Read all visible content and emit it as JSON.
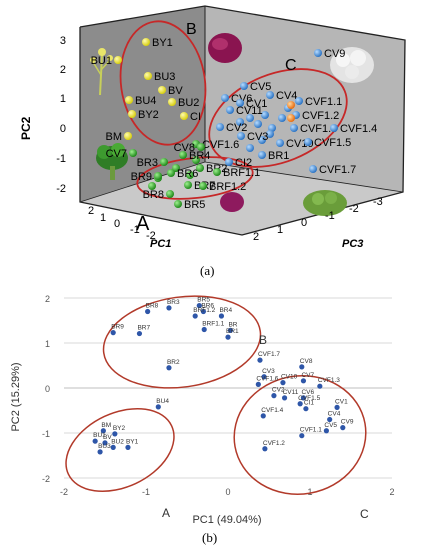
{
  "figure": {
    "label_a": "(a)",
    "label_b": "(b)"
  },
  "panel_a": {
    "axis_labels": {
      "pc1": "PC1",
      "pc2": "PC2",
      "pc3": "PC3"
    },
    "group_labels": {
      "A": "A",
      "B": "B",
      "C": "C"
    },
    "pc2_ticks": [
      "3",
      "2",
      "1",
      "0",
      "-1",
      "-2"
    ],
    "pc1_ticks": [
      "2",
      "1",
      "0",
      "-1",
      "-2"
    ],
    "pc3_ticks": [
      "2",
      "1",
      "0",
      "-1",
      "-2",
      "-3"
    ],
    "colors": {
      "A": "#f2ee2a",
      "B": "#2fa829",
      "C": "#3f8fd8",
      "misc": "#ff8a1c",
      "ellipse": "#c62828",
      "wall_left": "#8c8c8c",
      "wall_back": "#b6b6b6",
      "floor": "#c8c8c8"
    },
    "points_A": [
      "BY1",
      "BU1",
      "BU3",
      "BV",
      "BU4",
      "BU2",
      "BY2",
      "CI",
      "BM"
    ],
    "points_B": [
      "CV7",
      "BR4",
      "BR3",
      "BR9",
      "BR7",
      "BR6",
      "BR8",
      "BR5",
      "BR2",
      "BRF1.1",
      "BRF1.2",
      "CVF1.6",
      "CV8"
    ],
    "points_C": [
      "CV5",
      "CV6",
      "CV1",
      "CV4",
      "CV11",
      "CV2",
      "CV3",
      "CV10",
      "CVF1.1",
      "CVF1.2",
      "CVF1.3",
      "CVF1.4",
      "CVF1.5",
      "BR1",
      "CI2",
      "CV9",
      "CVF1.7"
    ]
  },
  "chart_data": {
    "type": "scatter",
    "title": "",
    "xlabel": "PC1 (49.04%)",
    "ylabel": "PC2 (15.29%)",
    "xlim": [
      -2,
      2
    ],
    "ylim": [
      -2,
      2
    ],
    "xticks": [
      -2,
      -1,
      0,
      1,
      2
    ],
    "yticks": [
      -2,
      -1,
      0,
      1,
      2
    ],
    "grid": "horizontal",
    "point_color": "#2e56a8",
    "ellipse_color": "#b23a2a",
    "groups": [
      {
        "label": "A",
        "points": [
          {
            "name": "BU4",
            "x": -0.85,
            "y": -0.42
          },
          {
            "name": "BM",
            "x": -1.52,
            "y": -0.95
          },
          {
            "name": "BY2",
            "x": -1.38,
            "y": -1.02
          },
          {
            "name": "BU1",
            "x": -1.62,
            "y": -1.18
          },
          {
            "name": "BV",
            "x": -1.5,
            "y": -1.22
          },
          {
            "name": "BU2",
            "x": -1.4,
            "y": -1.32
          },
          {
            "name": "BY1",
            "x": -1.22,
            "y": -1.32
          },
          {
            "name": "BU3",
            "x": -1.56,
            "y": -1.42
          }
        ]
      },
      {
        "label": "B",
        "points": [
          {
            "name": "BR5",
            "x": -0.35,
            "y": 1.83
          },
          {
            "name": "BR3",
            "x": -0.72,
            "y": 1.78
          },
          {
            "name": "BR8",
            "x": -0.98,
            "y": 1.7
          },
          {
            "name": "BR6",
            "x": -0.3,
            "y": 1.7
          },
          {
            "name": "BRF1.2",
            "x": -0.4,
            "y": 1.6
          },
          {
            "name": "BR4",
            "x": -0.08,
            "y": 1.6
          },
          {
            "name": "BRF1.1",
            "x": -0.29,
            "y": 1.3
          },
          {
            "name": "BR",
            "x": 0.03,
            "y": 1.28
          },
          {
            "name": "BR7",
            "x": -1.08,
            "y": 1.21
          },
          {
            "name": "BR9",
            "x": -1.4,
            "y": 1.23
          },
          {
            "name": "BR1",
            "x": 0.0,
            "y": 1.13
          },
          {
            "name": "BR2",
            "x": -0.72,
            "y": 0.45
          }
        ]
      },
      {
        "label": "C",
        "points": [
          {
            "name": "CVF1.7",
            "x": 0.39,
            "y": 0.62
          },
          {
            "name": "CV8",
            "x": 0.9,
            "y": 0.47
          },
          {
            "name": "CV3",
            "x": 0.44,
            "y": 0.25
          },
          {
            "name": "CV7",
            "x": 0.92,
            "y": 0.16
          },
          {
            "name": "CVF1.6",
            "x": 0.37,
            "y": 0.08
          },
          {
            "name": "CV10",
            "x": 0.67,
            "y": 0.12
          },
          {
            "name": "CVF1.3",
            "x": 1.12,
            "y": 0.04
          },
          {
            "name": "CV2",
            "x": 0.56,
            "y": -0.17
          },
          {
            "name": "CV11",
            "x": 0.69,
            "y": -0.22
          },
          {
            "name": "CV6",
            "x": 0.92,
            "y": -0.22
          },
          {
            "name": "CVF1.5",
            "x": 0.88,
            "y": -0.35
          },
          {
            "name": "CI1",
            "x": 0.95,
            "y": -0.46
          },
          {
            "name": "CV1",
            "x": 1.33,
            "y": -0.43
          },
          {
            "name": "CVF1.4",
            "x": 0.43,
            "y": -0.62
          },
          {
            "name": "CV4",
            "x": 1.24,
            "y": -0.7
          },
          {
            "name": "CV9",
            "x": 1.4,
            "y": -0.88
          },
          {
            "name": "CV5",
            "x": 1.2,
            "y": -0.95
          },
          {
            "name": "CVF1.1",
            "x": 0.9,
            "y": -1.06
          },
          {
            "name": "CVF1.2",
            "x": 0.45,
            "y": -1.35
          }
        ]
      }
    ]
  }
}
